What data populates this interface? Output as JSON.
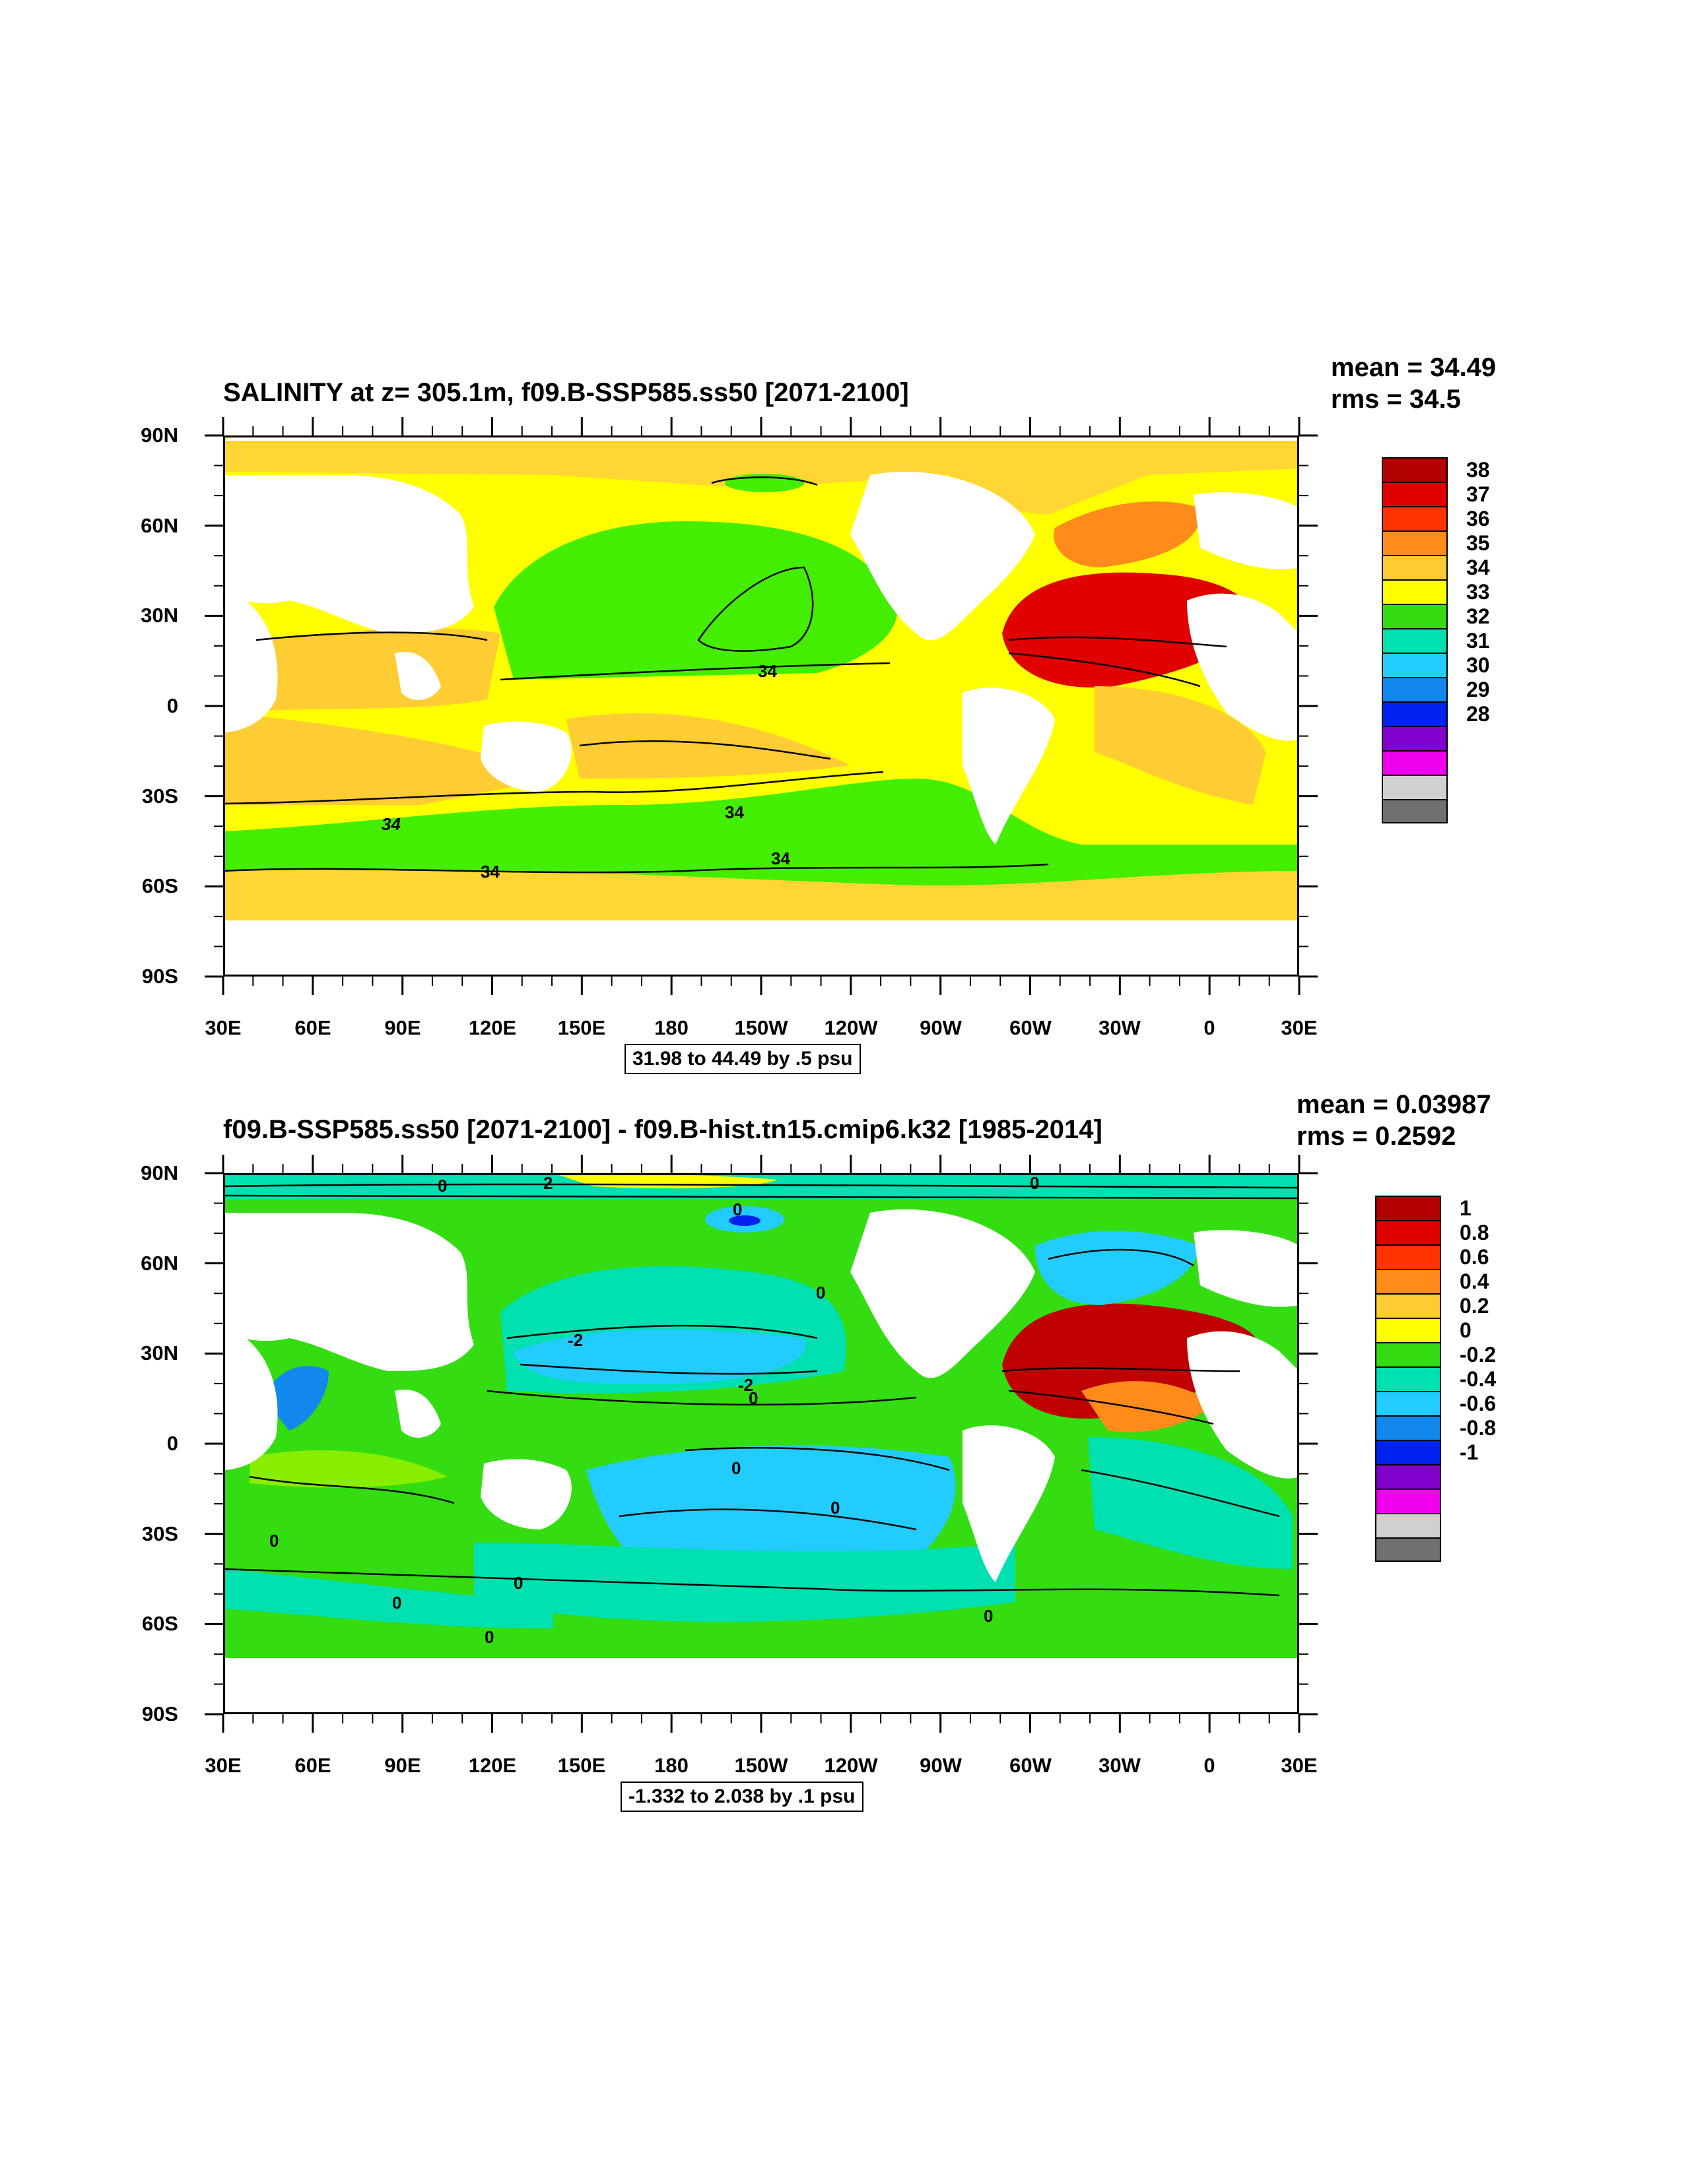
{
  "top_panel": {
    "title": "SALINITY at z= 305.1m, f09.B-SSP585.ss50 [2071-2100]",
    "mean_text": "mean = 34.49",
    "rms_text": "rms = 34.5",
    "range_text": "31.98 to 44.49 by .5 psu",
    "contour_labels": [
      "34",
      "34",
      "34",
      "34",
      "34"
    ],
    "colorbar": {
      "labels": [
        "38",
        "37",
        "36",
        "35",
        "34",
        "33",
        "32",
        "31",
        "30",
        "29",
        "28"
      ],
      "colors": [
        "#b30000",
        "#e00000",
        "#ff3300",
        "#ff8c1a",
        "#ffcc33",
        "#ffff00",
        "#33dd11",
        "#00e0b0",
        "#22ccff",
        "#1188ee",
        "#0022ee",
        "#8000cc",
        "#ee00ee",
        "#d0d0d0",
        "#707070"
      ]
    }
  },
  "bottom_panel": {
    "title": "f09.B-SSP585.ss50 [2071-2100] - f09.B-hist.tn15.cmip6.k32 [1985-2014]",
    "mean_text": "mean = 0.03987",
    "rms_text": "rms = 0.2592",
    "range_text": "-1.332 to 2.038 by .1 psu",
    "contour_labels": [
      "0",
      "2",
      "0",
      "0",
      "-2",
      "-2",
      "0",
      "0",
      "0",
      "0",
      "0",
      "0",
      "0",
      "0",
      "0"
    ],
    "colorbar": {
      "labels": [
        "1",
        "0.8",
        "0.6",
        "0.4",
        "0.2",
        "0",
        "-0.2",
        "-0.4",
        "-0.6",
        "-0.8",
        "-1"
      ],
      "colors": [
        "#b30000",
        "#e00000",
        "#ff3300",
        "#ff8c1a",
        "#ffcc33",
        "#ffff00",
        "#33dd11",
        "#00e0b0",
        "#22ccff",
        "#1188ee",
        "#0022ee",
        "#8000cc",
        "#ee00ee",
        "#d0d0d0",
        "#707070"
      ]
    }
  },
  "axes": {
    "y_labels": [
      "90N",
      "60N",
      "30N",
      "0",
      "30S",
      "60S",
      "90S"
    ],
    "x_labels": [
      "30E",
      "60E",
      "90E",
      "120E",
      "150E",
      "180",
      "150W",
      "120W",
      "90W",
      "60W",
      "30W",
      "0",
      "30E"
    ]
  },
  "colors": {
    "land": "#ffffff",
    "contour": "#000000"
  }
}
